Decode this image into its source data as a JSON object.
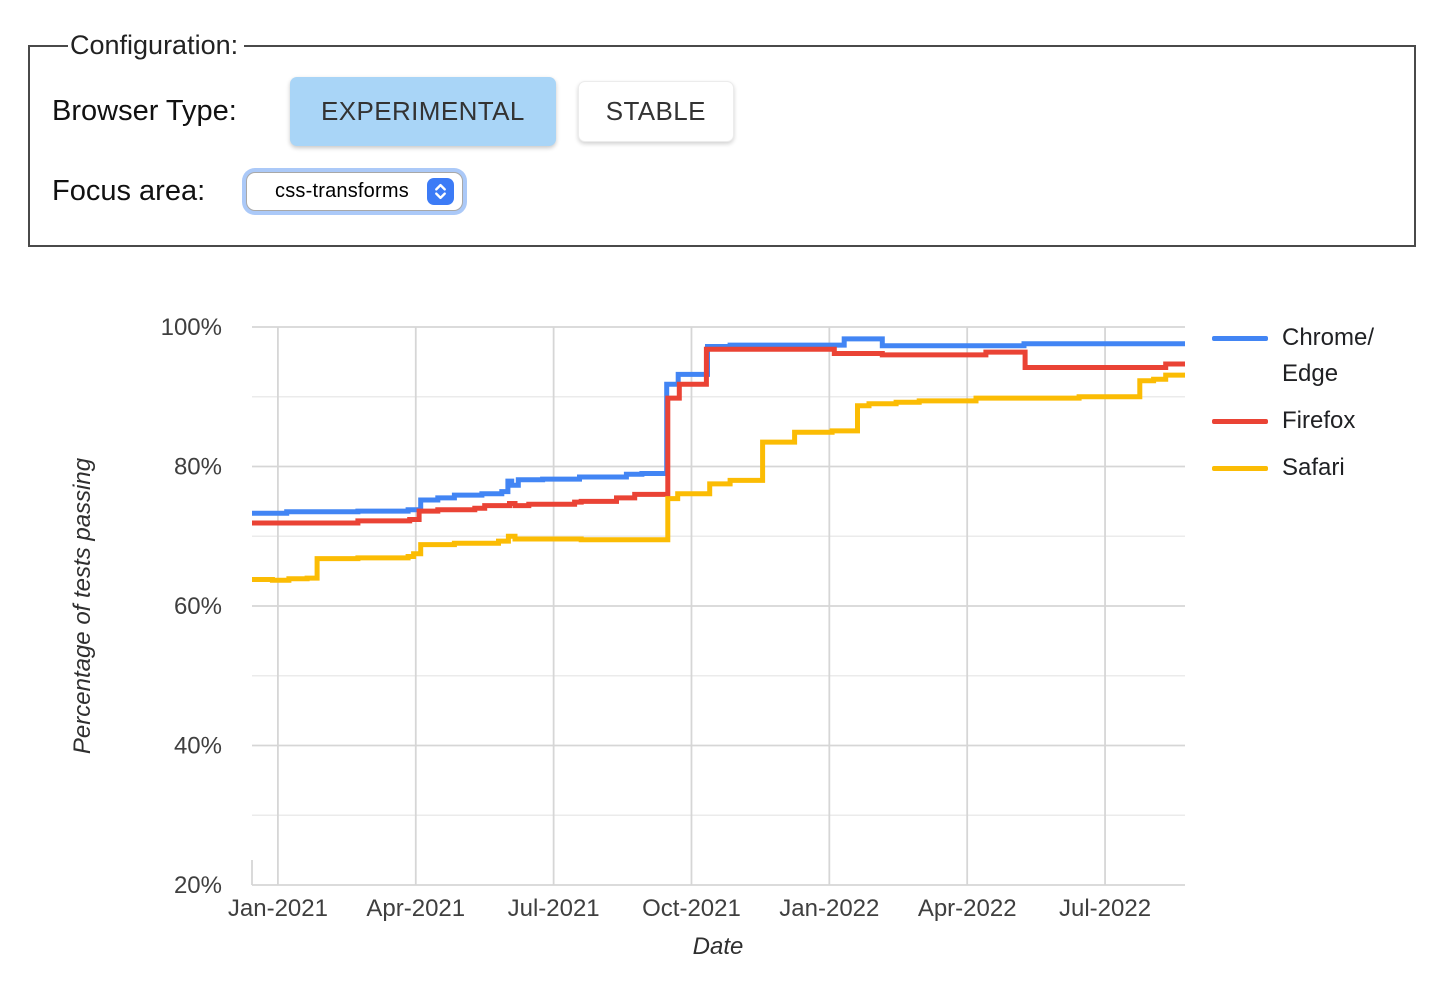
{
  "config": {
    "legend": "Configuration:",
    "browser_type_label": "Browser Type:",
    "buttons": {
      "experimental": "EXPERIMENTAL",
      "stable": "STABLE"
    },
    "focus_area_label": "Focus area:",
    "focus_area_value": "css-transforms"
  },
  "chart_data": {
    "type": "line",
    "title": "",
    "xlabel": "Date",
    "ylabel": "Percentage of tests passing",
    "xlim": [
      2020.953,
      2022.645
    ],
    "ylim": [
      20,
      100
    ],
    "interpolation": "step-after",
    "grid": {
      "major_color": "#d6d6d6",
      "minor_color": "#ebebeb"
    },
    "legend_position": "right",
    "x_ticks": [
      {
        "x": 2021.0,
        "label": "Jan-2021"
      },
      {
        "x": 2021.25,
        "label": "Apr-2021"
      },
      {
        "x": 2021.5,
        "label": "Jul-2021"
      },
      {
        "x": 2021.75,
        "label": "Oct-2021"
      },
      {
        "x": 2022.0,
        "label": "Jan-2022"
      },
      {
        "x": 2022.25,
        "label": "Apr-2022"
      },
      {
        "x": 2022.5,
        "label": "Jul-2022"
      }
    ],
    "y_ticks": [
      {
        "v": 20,
        "label": "20%"
      },
      {
        "v": 40,
        "label": "40%"
      },
      {
        "v": 60,
        "label": "60%"
      },
      {
        "v": 80,
        "label": "80%"
      },
      {
        "v": 100,
        "label": "100%"
      }
    ],
    "y_minor": [
      30,
      50,
      70,
      90
    ],
    "series": [
      {
        "name": "Chrome/Edge",
        "legend_label": "Chrome/\nEdge",
        "color": "#4285f4",
        "points": [
          [
            2020.953,
            73.3
          ],
          [
            2021.016,
            73.5
          ],
          [
            2021.145,
            73.6
          ],
          [
            2021.236,
            73.8
          ],
          [
            2021.259,
            75.2
          ],
          [
            2021.29,
            75.5
          ],
          [
            2021.32,
            75.9
          ],
          [
            2021.37,
            76.1
          ],
          [
            2021.406,
            76.4
          ],
          [
            2021.417,
            77.9
          ],
          [
            2021.424,
            77.3
          ],
          [
            2021.436,
            78.1
          ],
          [
            2021.48,
            78.2
          ],
          [
            2021.547,
            78.5
          ],
          [
            2021.632,
            78.9
          ],
          [
            2021.66,
            79.0
          ],
          [
            2021.705,
            91.8
          ],
          [
            2021.726,
            93.2
          ],
          [
            2021.779,
            97.2
          ],
          [
            2021.82,
            97.4
          ],
          [
            2022.027,
            98.3
          ],
          [
            2022.096,
            97.3
          ],
          [
            2022.353,
            97.6
          ],
          [
            2022.642,
            97.6
          ]
        ]
      },
      {
        "name": "Firefox",
        "legend_label": "Firefox",
        "color": "#ea4335",
        "points": [
          [
            2020.953,
            71.9
          ],
          [
            2021.145,
            72.2
          ],
          [
            2021.239,
            72.4
          ],
          [
            2021.256,
            73.6
          ],
          [
            2021.29,
            73.8
          ],
          [
            2021.357,
            74.0
          ],
          [
            2021.375,
            74.4
          ],
          [
            2021.42,
            74.7
          ],
          [
            2021.43,
            74.4
          ],
          [
            2021.455,
            74.6
          ],
          [
            2021.538,
            74.9
          ],
          [
            2021.55,
            75.0
          ],
          [
            2021.614,
            75.5
          ],
          [
            2021.647,
            76.0
          ],
          [
            2021.707,
            89.8
          ],
          [
            2021.728,
            91.8
          ],
          [
            2021.777,
            96.8
          ],
          [
            2022.009,
            96.2
          ],
          [
            2022.096,
            96.0
          ],
          [
            2022.284,
            96.4
          ],
          [
            2022.355,
            94.2
          ],
          [
            2022.61,
            94.7
          ],
          [
            2022.642,
            94.7
          ]
        ]
      },
      {
        "name": "Safari",
        "legend_label": "Safari",
        "color": "#fbbc04",
        "points": [
          [
            2020.953,
            63.8
          ],
          [
            2020.99,
            63.7
          ],
          [
            2021.02,
            63.9
          ],
          [
            2021.053,
            64.0
          ],
          [
            2021.071,
            66.8
          ],
          [
            2021.145,
            66.9
          ],
          [
            2021.236,
            67.1
          ],
          [
            2021.246,
            67.5
          ],
          [
            2021.259,
            68.8
          ],
          [
            2021.32,
            69.0
          ],
          [
            2021.4,
            69.3
          ],
          [
            2021.418,
            70.0
          ],
          [
            2021.43,
            69.6
          ],
          [
            2021.55,
            69.5
          ],
          [
            2021.707,
            75.4
          ],
          [
            2021.725,
            76.1
          ],
          [
            2021.783,
            77.5
          ],
          [
            2021.82,
            78.0
          ],
          [
            2021.879,
            83.5
          ],
          [
            2021.937,
            84.9
          ],
          [
            2022.005,
            85.1
          ],
          [
            2022.051,
            88.7
          ],
          [
            2022.072,
            89.0
          ],
          [
            2022.121,
            89.2
          ],
          [
            2022.163,
            89.4
          ],
          [
            2022.266,
            89.8
          ],
          [
            2022.453,
            90.0
          ],
          [
            2022.563,
            92.3
          ],
          [
            2022.588,
            92.5
          ],
          [
            2022.61,
            93.1
          ],
          [
            2022.642,
            93.1
          ]
        ]
      }
    ]
  }
}
